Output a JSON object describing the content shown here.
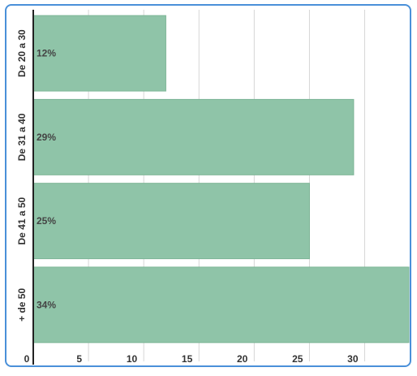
{
  "chart_data": {
    "type": "bar",
    "orientation": "horizontal",
    "categories": [
      "De 20 a 30",
      "De 31 a 40",
      "De 41 a 50",
      "+ de 50"
    ],
    "values": [
      12,
      29,
      25,
      34
    ],
    "data_labels": [
      "12%",
      "29%",
      "25%",
      "34%"
    ],
    "x_ticks": [
      0,
      5,
      10,
      15,
      20,
      25,
      30
    ],
    "xlim": [
      0,
      34
    ],
    "grid": true,
    "legend": "none",
    "colors": {
      "bar": "#8fc4a8",
      "grid": "#d6d6d6",
      "axis": "#222222",
      "frame": "#4a90d9"
    }
  }
}
